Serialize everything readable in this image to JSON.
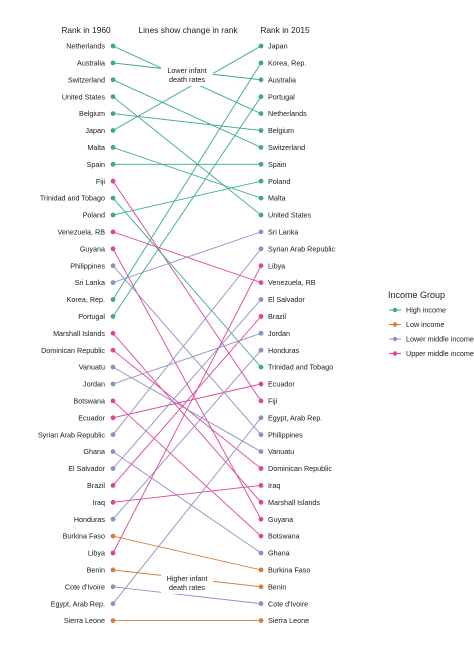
{
  "chart_data": {
    "type": "slope",
    "left_header": "Rank in 1960",
    "right_header": "Rank in 2015",
    "subtitle": "Lines show change in rank",
    "annotations": [
      {
        "lines": [
          "Lower infant",
          "death rates"
        ]
      },
      {
        "lines": [
          "Higher infant",
          "death rates"
        ]
      }
    ],
    "legend": {
      "title": "Income Group",
      "placement": "right",
      "entries": [
        {
          "group": "high",
          "name": "High income",
          "color": "#3aaa8a"
        },
        {
          "group": "low",
          "name": "Low income",
          "color": "#e07b2e"
        },
        {
          "group": "lower_middle",
          "name": "Lower middle income",
          "color": "#8f8fc4"
        },
        {
          "group": "upper_middle",
          "name": "Upper middle income",
          "color": "#e0449a"
        }
      ]
    },
    "countries": [
      {
        "name": "Netherlands",
        "group": "high",
        "rank_1960": 1,
        "rank_2015": 5
      },
      {
        "name": "Australia",
        "group": "high",
        "rank_1960": 2,
        "rank_2015": 3
      },
      {
        "name": "Switzerland",
        "group": "high",
        "rank_1960": 3,
        "rank_2015": 7
      },
      {
        "name": "United States",
        "group": "high",
        "rank_1960": 4,
        "rank_2015": 11
      },
      {
        "name": "Belgium",
        "group": "high",
        "rank_1960": 5,
        "rank_2015": 6
      },
      {
        "name": "Japan",
        "group": "high",
        "rank_1960": 6,
        "rank_2015": 1
      },
      {
        "name": "Malta",
        "group": "high",
        "rank_1960": 7,
        "rank_2015": 10
      },
      {
        "name": "Spain",
        "group": "high",
        "rank_1960": 8,
        "rank_2015": 8
      },
      {
        "name": "Fiji",
        "group": "upper_middle",
        "rank_1960": 9,
        "rank_2015": 22
      },
      {
        "name": "Trinidad and Tobago",
        "group": "high",
        "rank_1960": 10,
        "rank_2015": 20
      },
      {
        "name": "Poland",
        "group": "high",
        "rank_1960": 11,
        "rank_2015": 9
      },
      {
        "name": "Venezuela, RB",
        "group": "upper_middle",
        "rank_1960": 12,
        "rank_2015": 15
      },
      {
        "name": "Guyana",
        "group": "upper_middle",
        "rank_1960": 13,
        "rank_2015": 29
      },
      {
        "name": "Philippines",
        "group": "lower_middle",
        "rank_1960": 14,
        "rank_2015": 24
      },
      {
        "name": "Sri Lanka",
        "group": "lower_middle",
        "rank_1960": 15,
        "rank_2015": 12
      },
      {
        "name": "Korea, Rep.",
        "group": "high",
        "rank_1960": 16,
        "rank_2015": 2
      },
      {
        "name": "Portugal",
        "group": "high",
        "rank_1960": 17,
        "rank_2015": 4
      },
      {
        "name": "Marshall Islands",
        "group": "upper_middle",
        "rank_1960": 18,
        "rank_2015": 28
      },
      {
        "name": "Dominican Republic",
        "group": "upper_middle",
        "rank_1960": 19,
        "rank_2015": 26
      },
      {
        "name": "Vanuatu",
        "group": "lower_middle",
        "rank_1960": 20,
        "rank_2015": 25
      },
      {
        "name": "Jordan",
        "group": "lower_middle",
        "rank_1960": 21,
        "rank_2015": 18
      },
      {
        "name": "Botswana",
        "group": "upper_middle",
        "rank_1960": 22,
        "rank_2015": 30
      },
      {
        "name": "Ecuador",
        "group": "upper_middle",
        "rank_1960": 23,
        "rank_2015": 21
      },
      {
        "name": "Syrian Arab Republic",
        "group": "lower_middle",
        "rank_1960": 24,
        "rank_2015": 13
      },
      {
        "name": "Ghana",
        "group": "lower_middle",
        "rank_1960": 25,
        "rank_2015": 31
      },
      {
        "name": "El Salvador",
        "group": "lower_middle",
        "rank_1960": 26,
        "rank_2015": 16
      },
      {
        "name": "Brazil",
        "group": "upper_middle",
        "rank_1960": 27,
        "rank_2015": 17
      },
      {
        "name": "Iraq",
        "group": "upper_middle",
        "rank_1960": 28,
        "rank_2015": 27
      },
      {
        "name": "Honduras",
        "group": "lower_middle",
        "rank_1960": 29,
        "rank_2015": 19
      },
      {
        "name": "Burkina Faso",
        "group": "low",
        "rank_1960": 30,
        "rank_2015": 32
      },
      {
        "name": "Libya",
        "group": "upper_middle",
        "rank_1960": 31,
        "rank_2015": 14
      },
      {
        "name": "Benin",
        "group": "low",
        "rank_1960": 32,
        "rank_2015": 33
      },
      {
        "name": "Cote d'Ivoire",
        "group": "lower_middle",
        "rank_1960": 33,
        "rank_2015": 34
      },
      {
        "name": "Egypt, Arab Rep.",
        "group": "lower_middle",
        "rank_1960": 34,
        "rank_2015": 23
      },
      {
        "name": "Sierra Leone",
        "group": "low",
        "rank_1960": 35,
        "rank_2015": 35
      }
    ]
  }
}
